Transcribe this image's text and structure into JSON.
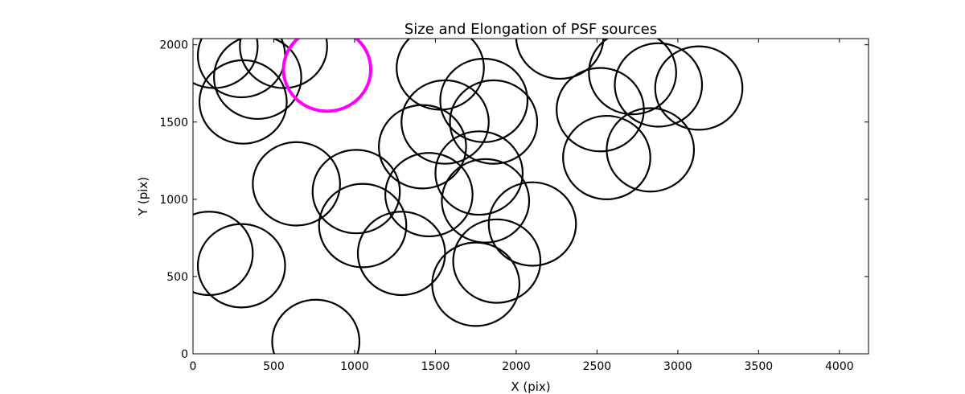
{
  "chart_data": {
    "type": "scatter",
    "title": "Size and Elongation of PSF sources",
    "xlabel": "X (pix)",
    "ylabel": "Y (pix)",
    "xlim": [
      0,
      4180
    ],
    "ylim": [
      0,
      2040
    ],
    "xticks": [
      0,
      500,
      1000,
      1500,
      2000,
      2500,
      3000,
      3500,
      4000
    ],
    "yticks": [
      0,
      500,
      1000,
      1500,
      2000
    ],
    "xtick_labels": [
      "0",
      "500",
      "1000",
      "1500",
      "2000",
      "2500",
      "3000",
      "3500",
      "4000"
    ],
    "ytick_labels": [
      "0",
      "500",
      "1000",
      "1500",
      "2000"
    ],
    "grid": false,
    "colors": {
      "default": "#000000",
      "highlight": "#ff00ff"
    },
    "sources": [
      {
        "x": 130,
        "y": 1990,
        "r": 270,
        "highlight": false
      },
      {
        "x": 300,
        "y": 1930,
        "r": 270,
        "highlight": false
      },
      {
        "x": 400,
        "y": 1790,
        "r": 270,
        "highlight": false
      },
      {
        "x": 560,
        "y": 1990,
        "r": 270,
        "highlight": false
      },
      {
        "x": 310,
        "y": 1630,
        "r": 270,
        "highlight": false
      },
      {
        "x": 830,
        "y": 1840,
        "r": 270,
        "highlight": true
      },
      {
        "x": 1530,
        "y": 1850,
        "r": 270,
        "highlight": false
      },
      {
        "x": 2270,
        "y": 2050,
        "r": 270,
        "highlight": false
      },
      {
        "x": 2720,
        "y": 1820,
        "r": 270,
        "highlight": false
      },
      {
        "x": 2880,
        "y": 1740,
        "r": 270,
        "highlight": false
      },
      {
        "x": 3130,
        "y": 1720,
        "r": 270,
        "highlight": false
      },
      {
        "x": 2520,
        "y": 1580,
        "r": 270,
        "highlight": false
      },
      {
        "x": 1800,
        "y": 1640,
        "r": 270,
        "highlight": false
      },
      {
        "x": 1860,
        "y": 1500,
        "r": 270,
        "highlight": false
      },
      {
        "x": 1560,
        "y": 1500,
        "r": 270,
        "highlight": false
      },
      {
        "x": 1420,
        "y": 1340,
        "r": 270,
        "highlight": false
      },
      {
        "x": 2560,
        "y": 1270,
        "r": 270,
        "highlight": false
      },
      {
        "x": 2830,
        "y": 1320,
        "r": 270,
        "highlight": false
      },
      {
        "x": 640,
        "y": 1100,
        "r": 270,
        "highlight": false
      },
      {
        "x": 1010,
        "y": 1050,
        "r": 270,
        "highlight": false
      },
      {
        "x": 1460,
        "y": 1030,
        "r": 270,
        "highlight": false
      },
      {
        "x": 1770,
        "y": 1170,
        "r": 270,
        "highlight": false
      },
      {
        "x": 1810,
        "y": 990,
        "r": 270,
        "highlight": false
      },
      {
        "x": 2100,
        "y": 840,
        "r": 270,
        "highlight": false
      },
      {
        "x": 1050,
        "y": 830,
        "r": 270,
        "highlight": false
      },
      {
        "x": 1290,
        "y": 650,
        "r": 270,
        "highlight": false
      },
      {
        "x": 1880,
        "y": 600,
        "r": 270,
        "highlight": false
      },
      {
        "x": 1750,
        "y": 450,
        "r": 270,
        "highlight": false
      },
      {
        "x": 100,
        "y": 650,
        "r": 270,
        "highlight": false
      },
      {
        "x": 300,
        "y": 570,
        "r": 270,
        "highlight": false
      },
      {
        "x": 760,
        "y": 80,
        "r": 270,
        "highlight": false
      }
    ]
  }
}
